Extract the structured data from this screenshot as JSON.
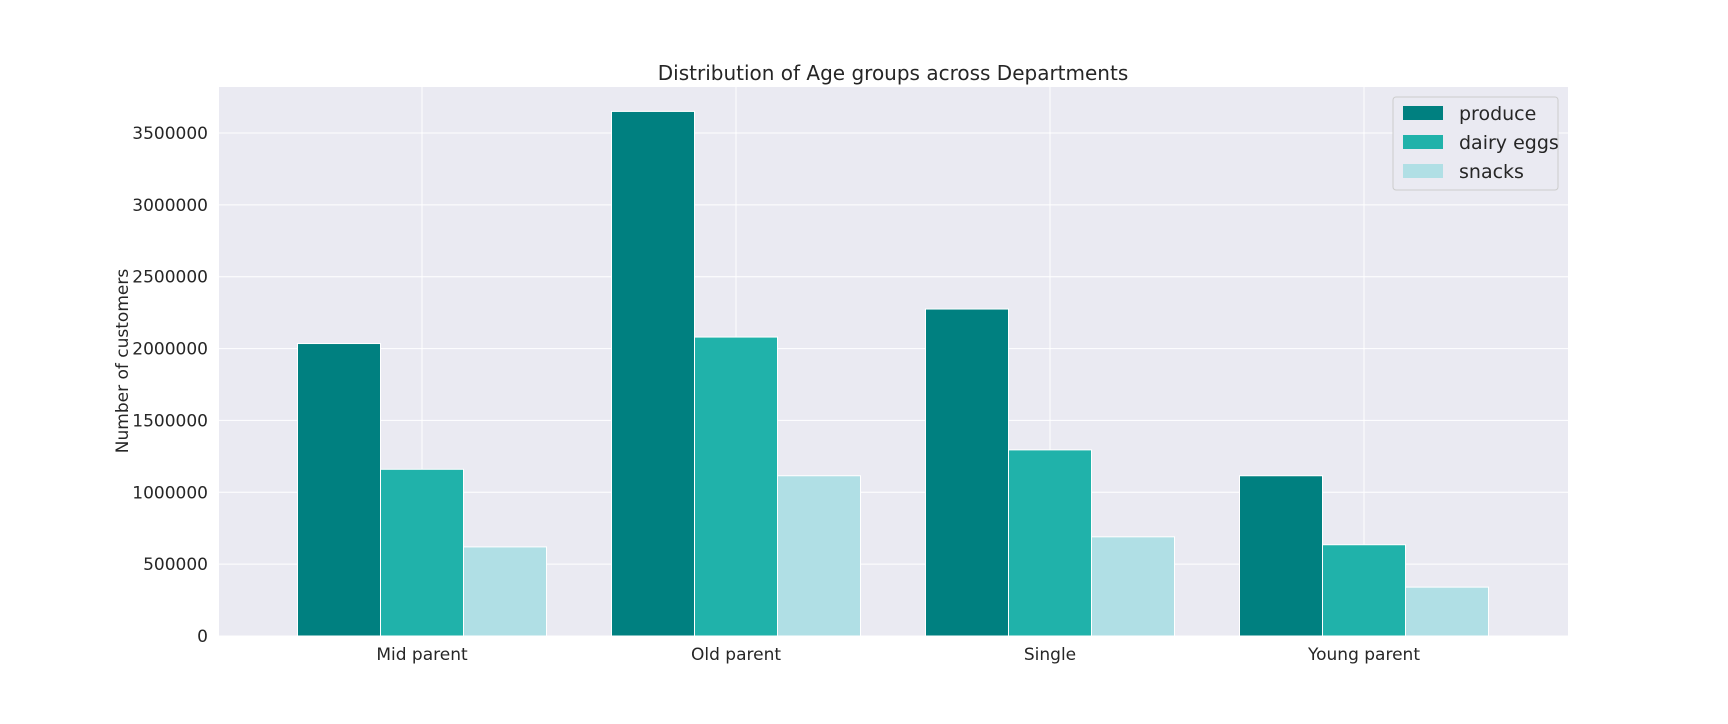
{
  "chart_data": {
    "type": "bar",
    "title": "Distribution of Age groups across Departments",
    "xlabel": "",
    "ylabel": "Number of customers",
    "categories": [
      "Mid parent",
      "Old parent",
      "Single",
      "Young parent"
    ],
    "series": [
      {
        "name": "produce",
        "color": "#008080",
        "values": [
          2035000,
          3650000,
          2275000,
          1115000
        ]
      },
      {
        "name": "dairy eggs",
        "color": "#20b2aa",
        "values": [
          1160000,
          2080000,
          1295000,
          635000
        ]
      },
      {
        "name": "snacks",
        "color": "#b0dfe5",
        "values": [
          620000,
          1115000,
          690000,
          340000
        ]
      }
    ],
    "ylim": [
      0,
      3820000
    ],
    "yticks": [
      0,
      500000,
      1000000,
      1500000,
      2000000,
      2500000,
      3000000,
      3500000
    ],
    "ytick_labels": [
      "0",
      "500000",
      "1000000",
      "1500000",
      "2000000",
      "2500000",
      "3000000",
      "3500000"
    ],
    "grid": true,
    "legend_position": "top-right",
    "background_color": "#eaeaf2",
    "grid_color": "#ffffff"
  }
}
